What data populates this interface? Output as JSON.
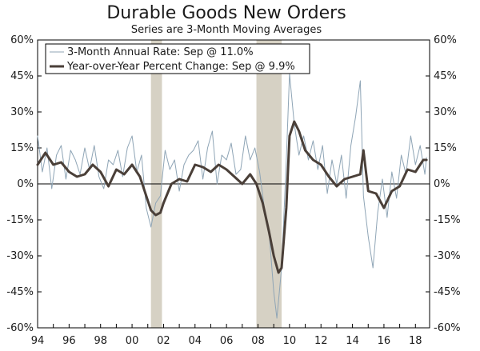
{
  "chart_data": {
    "type": "line",
    "title": "Durable Goods New Orders",
    "subtitle": "Series are 3-Month Moving Averages",
    "xlabel": "",
    "ylabel": "",
    "xlim": [
      1994,
      2018.9
    ],
    "ylim": [
      -60,
      60
    ],
    "y_ticks": [
      -60,
      -45,
      -30,
      -15,
      0,
      15,
      30,
      45,
      60
    ],
    "y_tick_labels": [
      "-60%",
      "-45%",
      "-30%",
      "-15%",
      "0%",
      "15%",
      "30%",
      "45%",
      "60%"
    ],
    "x_ticks": [
      1994,
      1996,
      1998,
      2000,
      2002,
      2004,
      2006,
      2008,
      2010,
      2012,
      2014,
      2016,
      2018
    ],
    "x_tick_labels": [
      "94",
      "96",
      "98",
      "00",
      "02",
      "04",
      "06",
      "08",
      "10",
      "12",
      "14",
      "16",
      "18"
    ],
    "legend_position": "top-left",
    "recessions": [
      {
        "start": 2001.2,
        "end": 2001.9
      },
      {
        "start": 2007.9,
        "end": 2009.5
      }
    ],
    "colors": {
      "annual_rate": "#8fa5b6",
      "yoy": "#4a3f38",
      "recession": "#d6d1c4",
      "zero_line": "#000000"
    },
    "series": [
      {
        "name": "3-Month Annual Rate: Sep @ 11.0%",
        "style": "thin",
        "x": [
          1994.0,
          1994.3,
          1994.6,
          1994.9,
          1995.2,
          1995.5,
          1995.8,
          1996.1,
          1996.4,
          1996.7,
          1997.0,
          1997.3,
          1997.6,
          1997.9,
          1998.2,
          1998.5,
          1998.8,
          1999.1,
          1999.4,
          1999.7,
          2000.0,
          2000.3,
          2000.6,
          2000.9,
          2001.2,
          2001.5,
          2001.8,
          2002.1,
          2002.4,
          2002.7,
          2003.0,
          2003.3,
          2003.6,
          2003.9,
          2004.2,
          2004.5,
          2004.8,
          2005.1,
          2005.4,
          2005.7,
          2006.0,
          2006.3,
          2006.6,
          2006.9,
          2007.2,
          2007.5,
          2007.8,
          2008.1,
          2008.4,
          2008.7,
          2009.0,
          2009.2,
          2009.5,
          2009.8,
          2010.0,
          2010.3,
          2010.6,
          2010.9,
          2011.2,
          2011.5,
          2011.8,
          2012.1,
          2012.4,
          2012.7,
          2013.0,
          2013.3,
          2013.6,
          2013.9,
          2014.2,
          2014.5,
          2014.7,
          2015.0,
          2015.3,
          2015.6,
          2015.9,
          2016.2,
          2016.5,
          2016.8,
          2017.1,
          2017.4,
          2017.7,
          2018.0,
          2018.3,
          2018.6,
          2018.7
        ],
        "values": [
          20,
          5,
          15,
          -2,
          12,
          16,
          2,
          14,
          10,
          4,
          15,
          6,
          16,
          3,
          -2,
          10,
          8,
          14,
          3,
          15,
          20,
          5,
          12,
          -10,
          -18,
          -8,
          -5,
          14,
          6,
          10,
          -3,
          8,
          12,
          14,
          18,
          2,
          15,
          22,
          0,
          12,
          10,
          17,
          4,
          6,
          20,
          10,
          15,
          5,
          -10,
          -20,
          -45,
          -56,
          -35,
          10,
          46,
          25,
          12,
          20,
          10,
          18,
          6,
          16,
          -4,
          10,
          0,
          12,
          -6,
          16,
          28,
          43,
          -5,
          -22,
          -35,
          -12,
          2,
          -14,
          5,
          -6,
          12,
          4,
          20,
          8,
          16,
          4,
          11
        ]
      },
      {
        "name": "Year-over-Year Percent Change: Sep @ 9.9%",
        "style": "thick",
        "x": [
          1994.0,
          1994.5,
          1995.0,
          1995.5,
          1996.0,
          1996.5,
          1997.0,
          1997.5,
          1998.0,
          1998.5,
          1999.0,
          1999.5,
          2000.0,
          2000.5,
          2000.9,
          2001.2,
          2001.5,
          2001.8,
          2002.0,
          2002.5,
          2003.0,
          2003.5,
          2004.0,
          2004.5,
          2005.0,
          2005.5,
          2006.0,
          2006.5,
          2007.0,
          2007.5,
          2007.9,
          2008.3,
          2008.7,
          2009.0,
          2009.3,
          2009.5,
          2009.8,
          2010.0,
          2010.3,
          2010.6,
          2011.0,
          2011.5,
          2012.0,
          2012.5,
          2013.0,
          2013.5,
          2014.0,
          2014.5,
          2014.7,
          2015.0,
          2015.5,
          2016.0,
          2016.5,
          2017.0,
          2017.5,
          2018.0,
          2018.5,
          2018.7
        ],
        "values": [
          8,
          13,
          8,
          9,
          5,
          3,
          4,
          8,
          5,
          -1,
          6,
          4,
          8,
          3,
          -5,
          -11,
          -13,
          -12,
          -8,
          0,
          2,
          1,
          8,
          7,
          5,
          8,
          6,
          3,
          0,
          4,
          0,
          -8,
          -20,
          -30,
          -37,
          -35,
          -10,
          20,
          26,
          22,
          14,
          10,
          8,
          3,
          -1,
          2,
          3,
          4,
          14,
          -3,
          -4,
          -10,
          -3,
          -1,
          6,
          5,
          10,
          10
        ]
      }
    ]
  }
}
